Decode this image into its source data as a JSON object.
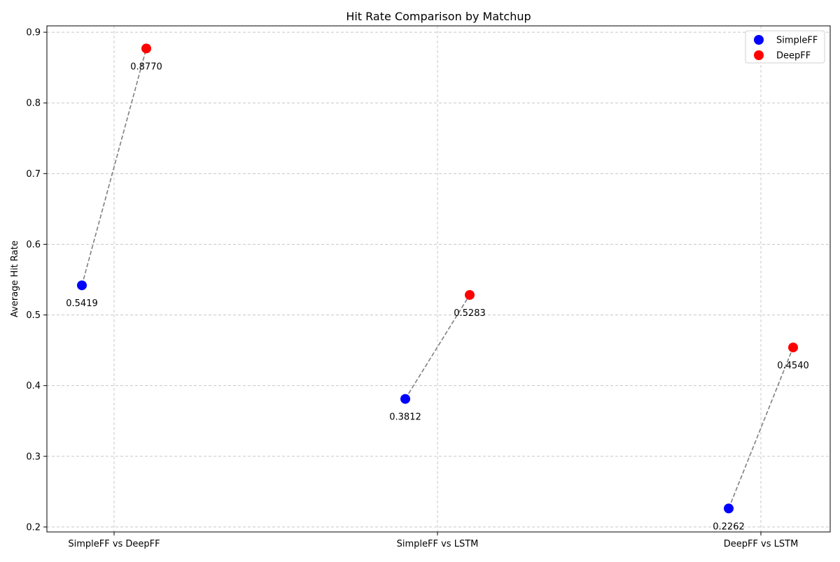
{
  "chart_data": {
    "type": "scatter",
    "title": "Hit Rate Comparison by Matchup",
    "xlabel": "",
    "ylabel": "Average Hit Rate",
    "categories": [
      "SimpleFF vs DeepFF",
      "SimpleFF vs LSTM",
      "DeepFF vs LSTM"
    ],
    "series": [
      {
        "name": "SimpleFF",
        "color": "#0000ff",
        "values": [
          0.5419,
          0.3812,
          0.2262
        ],
        "labels": [
          "0.5419",
          "0.3812",
          "0.2262"
        ]
      },
      {
        "name": "DeepFF",
        "color": "#ff0000",
        "values": [
          0.877,
          0.5283,
          0.454
        ],
        "labels": [
          "0.8770",
          "0.5283",
          "0.4540"
        ]
      }
    ],
    "connector_color": "#808080",
    "connector_style": "dashed",
    "ylim": [
      0.193,
      0.909
    ],
    "yticks": [
      0.2,
      0.3,
      0.4,
      0.5,
      0.6,
      0.7,
      0.8,
      0.9
    ],
    "ytick_labels": [
      "0.2",
      "0.3",
      "0.4",
      "0.5",
      "0.6",
      "0.7",
      "0.8",
      "0.9"
    ],
    "grid": true,
    "legend_position": "top-right"
  }
}
